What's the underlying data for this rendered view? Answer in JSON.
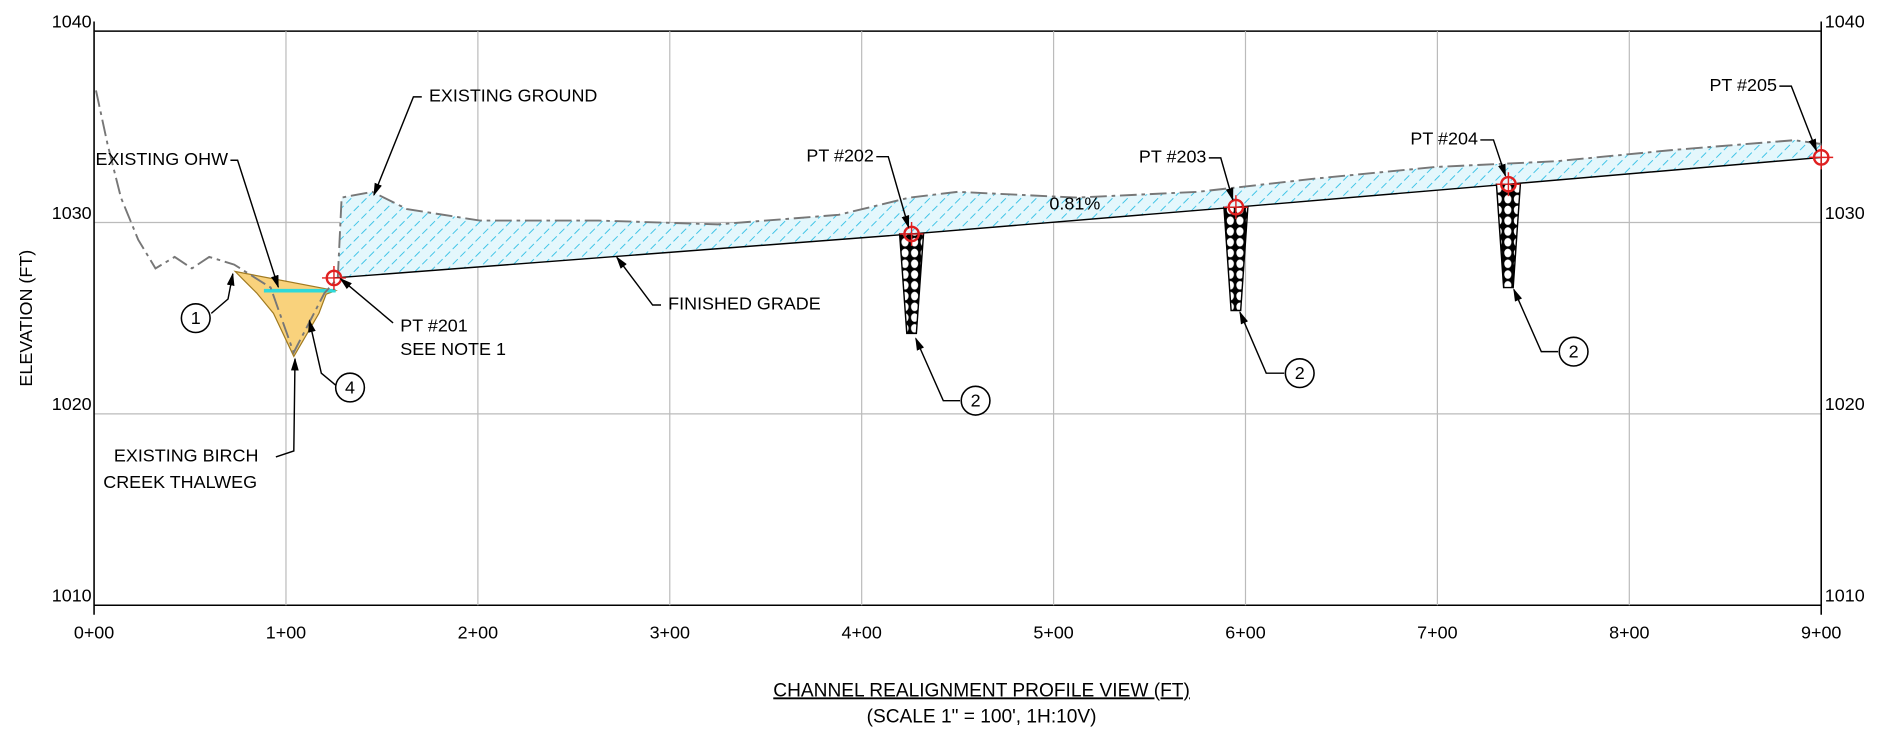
{
  "chart_data": {
    "type": "profile",
    "title": "CHANNEL REALIGNMENT PROFILE VIEW (FT)",
    "subtitle": "(SCALE 1\" = 100', 1H:10V)",
    "y_label": "ELEVATION (FT)",
    "xlim": [
      0,
      900
    ],
    "xticks": [
      {
        "value": 0,
        "label": "0+00"
      },
      {
        "value": 100,
        "label": "1+00"
      },
      {
        "value": 200,
        "label": "2+00"
      },
      {
        "value": 300,
        "label": "3+00"
      },
      {
        "value": 400,
        "label": "4+00"
      },
      {
        "value": 500,
        "label": "5+00"
      },
      {
        "value": 600,
        "label": "6+00"
      },
      {
        "value": 700,
        "label": "7+00"
      },
      {
        "value": 800,
        "label": "8+00"
      },
      {
        "value": 900,
        "label": "9+00"
      }
    ],
    "ylim": [
      1010,
      1040
    ],
    "yticks": [
      1010,
      1020,
      1030,
      1040
    ],
    "grid": true,
    "series": [
      {
        "name": "EXISTING GROUND",
        "color": "#777777",
        "x": [
          1,
          7,
          14,
          23,
          32,
          42,
          51,
          60,
          73,
          92,
          104,
          120,
          127,
          129,
          145,
          163,
          201,
          263,
          325,
          388,
          425,
          450,
          512,
          575,
          637,
          699,
          762,
          824,
          886,
          900
        ],
        "values": [
          1036.9,
          1034.1,
          1031.3,
          1029.1,
          1027.6,
          1028.2,
          1027.6,
          1028.2,
          1027.8,
          1026.6,
          1023.2,
          1026.3,
          1027.1,
          1031.3,
          1031.6,
          1030.7,
          1030.1,
          1030.1,
          1029.9,
          1030.4,
          1031.3,
          1031.6,
          1031.3,
          1031.6,
          1032.3,
          1032.9,
          1033.2,
          1033.8,
          1034.3,
          1034.1
        ]
      },
      {
        "name": "FINISHED GRADE",
        "color": "#000000",
        "x": [
          125,
          426,
          595,
          737,
          900
        ],
        "values": [
          1027.1,
          1029.4,
          1030.8,
          1032.0,
          1033.4
        ]
      }
    ],
    "points": [
      {
        "label": "PT #201",
        "x": 125,
        "y": 1027.1
      },
      {
        "label": "PT #202",
        "x": 426,
        "y": 1029.4
      },
      {
        "label": "PT #203",
        "x": 595,
        "y": 1030.8
      },
      {
        "label": "PT #204",
        "x": 737,
        "y": 1032.0
      },
      {
        "label": "PT #205",
        "x": 900,
        "y": 1033.4
      }
    ],
    "structures": [
      {
        "x": 426,
        "top": 1029.4,
        "bottom": 1024.2
      },
      {
        "x": 595,
        "top": 1030.8,
        "bottom": 1025.4
      },
      {
        "x": 737,
        "top": 1032.0,
        "bottom": 1026.6
      }
    ],
    "slope_label": "0.81%",
    "annotations": [
      "EXISTING GROUND",
      "EXISTING OHW",
      "FINISHED GRADE",
      "SEE NOTE 1",
      "EXISTING BIRCH",
      "CREEK THALWEG"
    ],
    "callouts": [
      "1",
      "4",
      "2",
      "2",
      "2"
    ]
  }
}
